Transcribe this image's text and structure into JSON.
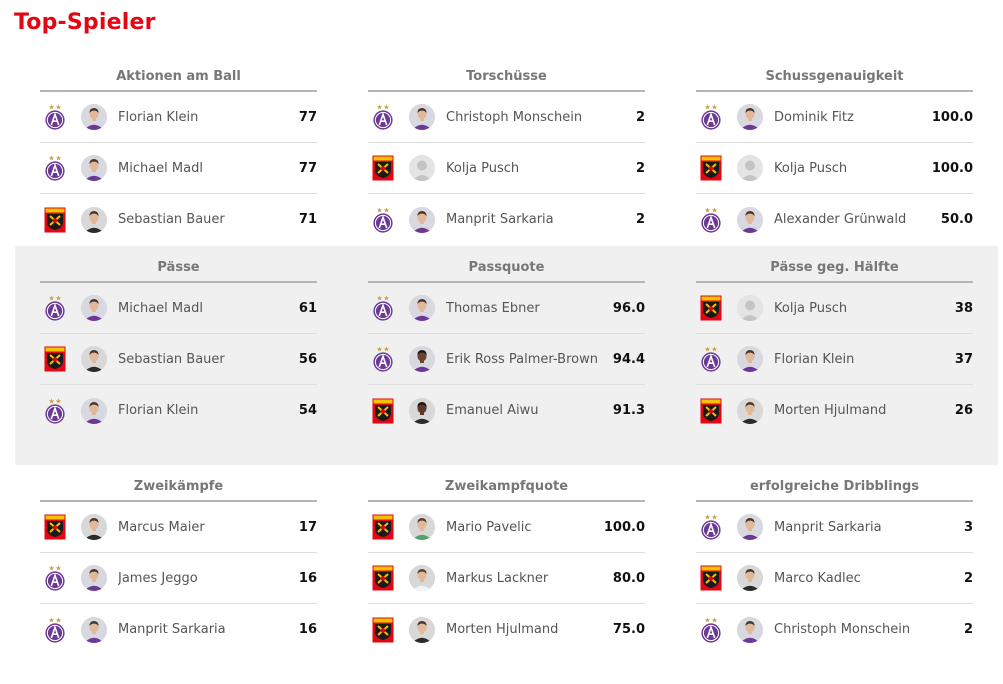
{
  "page_title": "Top-Spieler",
  "colors": {
    "title": "#e30613",
    "austria": "#6c3a96",
    "admira_red": "#e30613",
    "admira_yellow": "#f2c400"
  },
  "icons": {
    "austria": "austria-wien-crest-icon",
    "admira": "admira-crest-icon"
  },
  "sections": [
    {
      "panels": [
        {
          "title": "Aktionen am Ball",
          "rows": [
            {
              "club": "austria",
              "player": "Florian Klein",
              "value": "77",
              "kit": "purple"
            },
            {
              "club": "austria",
              "player": "Michael Madl",
              "value": "77",
              "kit": "purple"
            },
            {
              "club": "admira",
              "player": "Sebastian Bauer",
              "value": "71",
              "kit": "black"
            }
          ]
        },
        {
          "title": "Torschüsse",
          "rows": [
            {
              "club": "austria",
              "player": "Christoph Monschein",
              "value": "2",
              "kit": "purple"
            },
            {
              "club": "admira",
              "player": "Kolja Pusch",
              "value": "2",
              "kit": "none"
            },
            {
              "club": "austria",
              "player": "Manprit Sarkaria",
              "value": "2",
              "kit": "purple"
            }
          ]
        },
        {
          "title": "Schussgenauigkeit",
          "rows": [
            {
              "club": "austria",
              "player": "Dominik Fitz",
              "value": "100.0",
              "kit": "purple"
            },
            {
              "club": "admira",
              "player": "Kolja Pusch",
              "value": "100.0",
              "kit": "none"
            },
            {
              "club": "austria",
              "player": "Alexander Grünwald",
              "value": "50.0",
              "kit": "purple"
            }
          ]
        }
      ]
    },
    {
      "panels": [
        {
          "title": "Pässe",
          "rows": [
            {
              "club": "austria",
              "player": "Michael Madl",
              "value": "61",
              "kit": "purple"
            },
            {
              "club": "admira",
              "player": "Sebastian Bauer",
              "value": "56",
              "kit": "black"
            },
            {
              "club": "austria",
              "player": "Florian Klein",
              "value": "54",
              "kit": "purple"
            }
          ]
        },
        {
          "title": "Passquote",
          "rows": [
            {
              "club": "austria",
              "player": "Thomas Ebner",
              "value": "96.0",
              "kit": "purple"
            },
            {
              "club": "austria",
              "player": "Erik Ross Palmer-Brown",
              "value": "94.4",
              "kit": "purple-dark"
            },
            {
              "club": "admira",
              "player": "Emanuel Aiwu",
              "value": "91.3",
              "kit": "black-dark"
            }
          ]
        },
        {
          "title": "Pässe geg. Hälfte",
          "rows": [
            {
              "club": "admira",
              "player": "Kolja Pusch",
              "value": "38",
              "kit": "none"
            },
            {
              "club": "austria",
              "player": "Florian Klein",
              "value": "37",
              "kit": "purple"
            },
            {
              "club": "admira",
              "player": "Morten Hjulmand",
              "value": "26",
              "kit": "black"
            }
          ]
        }
      ]
    },
    {
      "panels": [
        {
          "title": "Zweikämpfe",
          "rows": [
            {
              "club": "admira",
              "player": "Marcus Maier",
              "value": "17",
              "kit": "black"
            },
            {
              "club": "austria",
              "player": "James Jeggo",
              "value": "16",
              "kit": "purple"
            },
            {
              "club": "austria",
              "player": "Manprit Sarkaria",
              "value": "16",
              "kit": "purple"
            }
          ]
        },
        {
          "title": "Zweikampfquote",
          "rows": [
            {
              "club": "admira",
              "player": "Mario Pavelic",
              "value": "100.0",
              "kit": "green"
            },
            {
              "club": "admira",
              "player": "Markus Lackner",
              "value": "80.0",
              "kit": "white"
            },
            {
              "club": "admira",
              "player": "Morten Hjulmand",
              "value": "75.0",
              "kit": "black"
            }
          ]
        },
        {
          "title": "erfolgreiche Dribblings",
          "rows": [
            {
              "club": "austria",
              "player": "Manprit Sarkaria",
              "value": "3",
              "kit": "purple"
            },
            {
              "club": "admira",
              "player": "Marco Kadlec",
              "value": "2",
              "kit": "black"
            },
            {
              "club": "austria",
              "player": "Christoph Monschein",
              "value": "2",
              "kit": "purple"
            }
          ]
        }
      ]
    }
  ]
}
